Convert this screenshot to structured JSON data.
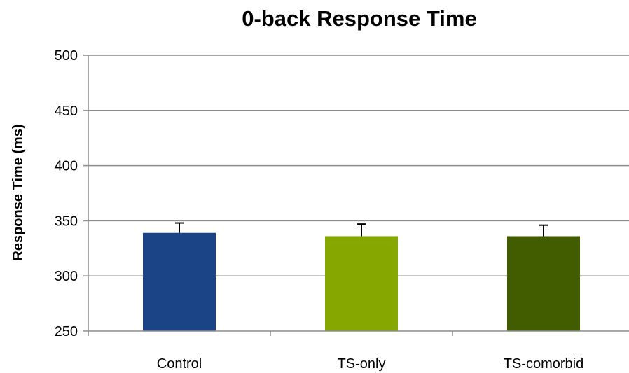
{
  "chart_data": {
    "type": "bar",
    "title": "0-back Response Time",
    "xlabel": "",
    "ylabel": "Response Time (ms)",
    "ylim": [
      250,
      500
    ],
    "yticks": [
      250,
      300,
      350,
      400,
      450,
      500
    ],
    "categories": [
      "Control",
      "TS-only",
      "TS-comorbid"
    ],
    "values": [
      339,
      336,
      336
    ],
    "error_upper": [
      9,
      11,
      10
    ],
    "colors": [
      "#1b4487",
      "#86a600",
      "#425c00"
    ],
    "grid": true,
    "legend": "none"
  }
}
